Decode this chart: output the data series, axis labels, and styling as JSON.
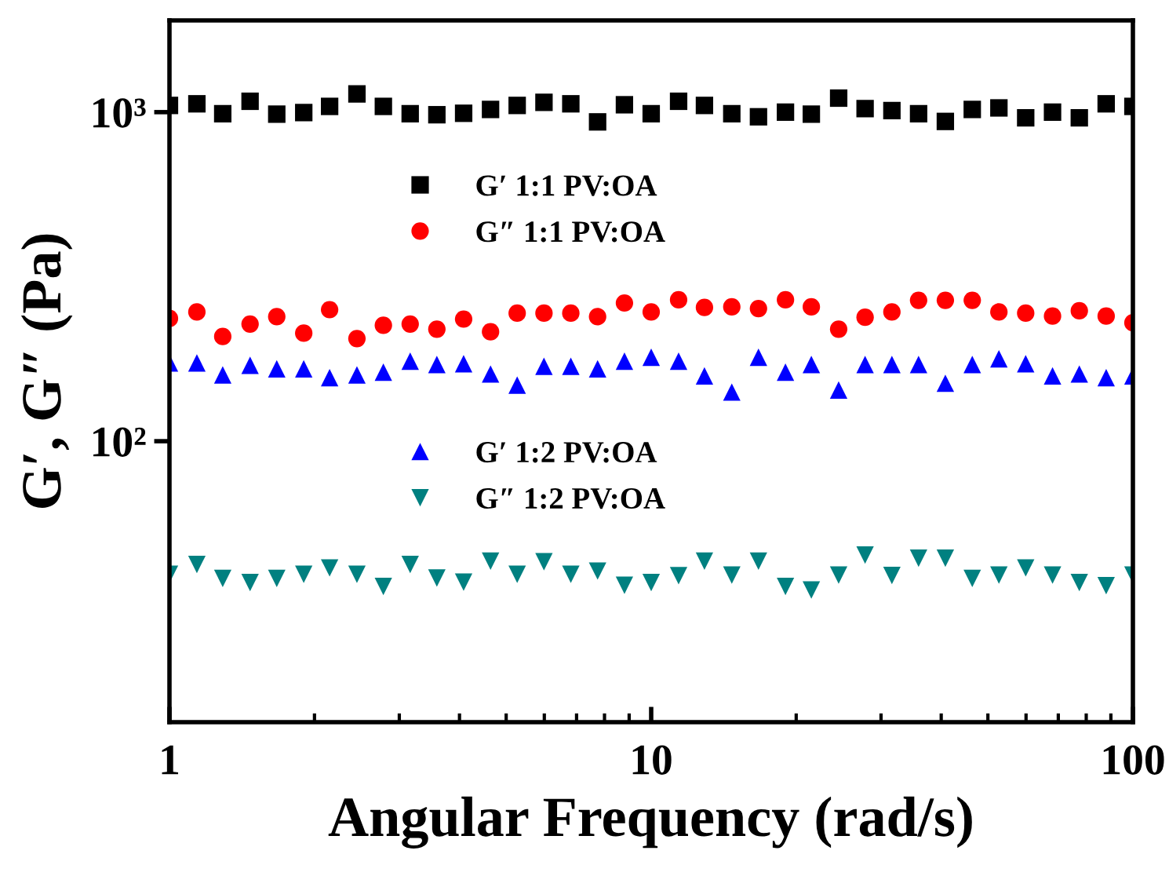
{
  "chart_data": {
    "type": "scatter",
    "xlabel": "Angular Frequency (rad/s)",
    "ylabel": "G′, G″ (Pa)",
    "x": [
      1,
      1.14,
      1.29,
      1.47,
      1.67,
      1.9,
      2.15,
      2.45,
      2.78,
      3.16,
      3.59,
      4.08,
      4.64,
      5.27,
      5.99,
      6.81,
      7.74,
      8.8,
      10,
      11.4,
      12.9,
      14.7,
      16.7,
      19,
      21.5,
      24.5,
      27.8,
      31.6,
      35.9,
      40.8,
      46.4,
      52.7,
      59.9,
      68.1,
      77.4,
      88,
      100
    ],
    "log": "xy",
    "xlim": [
      1,
      100
    ],
    "xticks": [
      1,
      10,
      100
    ],
    "ylim": [
      14,
      1900
    ],
    "yticks": [
      {
        "value": 100,
        "label": "10²"
      },
      {
        "value": 1000,
        "label": "10³"
      }
    ],
    "grid": false,
    "legend": "left",
    "series": [
      {
        "name": "G′ 1:1 PV:OA",
        "color": "#000000",
        "marker": "square",
        "values": [
          1048,
          1060,
          989,
          1079,
          986,
          997,
          1041,
          1136,
          1041,
          989,
          982,
          992,
          1019,
          1048,
          1071,
          1060,
          934,
          1053,
          989,
          1079,
          1048,
          989,
          968,
          1000,
          986,
          1103,
          1025,
          1011,
          989,
          937,
          1019,
          1030,
          961,
          1000,
          961,
          1060,
          1041
        ]
      },
      {
        "name": "G″ 1:1 PV:OA",
        "color": "#ff0000",
        "marker": "circle",
        "values": [
          236,
          247,
          208,
          227,
          239,
          213,
          251,
          205,
          225,
          227,
          219,
          235,
          215,
          245,
          245,
          245,
          239,
          263,
          247,
          269,
          255,
          256,
          253,
          269,
          256,
          219,
          238,
          247,
          268,
          268,
          268,
          247,
          245,
          240,
          249,
          240,
          229
        ]
      },
      {
        "name": "G′ 1:2 PV:OA",
        "color": "#0000ff",
        "marker": "triangle",
        "values": [
          173,
          173,
          159,
          170,
          166,
          166,
          156,
          159,
          162,
          175,
          171,
          172,
          160,
          148,
          169,
          169,
          166,
          175,
          180,
          175,
          158,
          141,
          180,
          162,
          171,
          143,
          171,
          171,
          171,
          150,
          171,
          178,
          172,
          158,
          160,
          156,
          158
        ]
      },
      {
        "name": "G″ 1:2 PV:OA",
        "color": "#008080",
        "marker": "triangle_down",
        "values": [
          39.4,
          42.2,
          38.3,
          37.2,
          38.3,
          39.4,
          41.2,
          39.4,
          36.2,
          42.2,
          38.4,
          37.3,
          43.2,
          39.4,
          43.0,
          39.4,
          40.3,
          36.5,
          37.2,
          39.0,
          43.2,
          39.2,
          43.2,
          36.2,
          35.3,
          39.2,
          45.1,
          39.1,
          44.1,
          44.1,
          38.3,
          39.2,
          41.2,
          39.2,
          37.2,
          36.4,
          39.2
        ]
      }
    ]
  }
}
